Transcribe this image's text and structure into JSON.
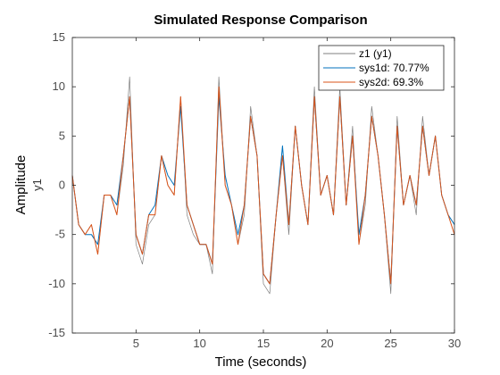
{
  "chart_data": {
    "type": "line",
    "title": "Simulated Response Comparison",
    "xlabel": "Time (seconds)",
    "ylabel": "Amplitude",
    "ylabel_sub": "y1",
    "xlim": [
      0,
      30
    ],
    "ylim": [
      -15,
      15
    ],
    "xticks": [
      5,
      10,
      15,
      20,
      25,
      30
    ],
    "yticks": [
      15,
      10,
      5,
      0,
      -5,
      -10,
      -15
    ],
    "grid": false,
    "legend_position": "top-right",
    "x": [
      0,
      0.5,
      1,
      1.5,
      2,
      2.5,
      3,
      3.5,
      4,
      4.5,
      5,
      5.5,
      6,
      6.5,
      7,
      7.5,
      8,
      8.5,
      9,
      9.5,
      10,
      10.5,
      11,
      11.5,
      12,
      12.5,
      13,
      13.5,
      14,
      14.5,
      15,
      15.5,
      16,
      16.5,
      17,
      17.5,
      18,
      18.5,
      19,
      19.5,
      20,
      20.5,
      21,
      21.5,
      22,
      22.5,
      23,
      23.5,
      24,
      24.5,
      25,
      25.5,
      26,
      26.5,
      27,
      27.5,
      28,
      28.5,
      29,
      29.5,
      30
    ],
    "series": [
      {
        "name": "z1 (y1)",
        "color": "#7f7f7f",
        "values": [
          1,
          -4,
          -5,
          -4,
          -7,
          -1,
          -1,
          -3,
          2,
          11,
          -6,
          -8,
          -4,
          -3,
          3,
          0,
          -1,
          9,
          -3,
          -5,
          -6,
          -6,
          -9,
          11,
          0,
          -2,
          -6,
          -3,
          8,
          3,
          -10,
          -11,
          -3,
          3,
          -5,
          6,
          0,
          -4,
          10,
          -1,
          1,
          -3,
          10,
          -2,
          6,
          -6,
          -2,
          8,
          3,
          -3,
          -11,
          7,
          -2,
          1,
          -3,
          7,
          1,
          5,
          -1,
          -3,
          -4
        ]
      },
      {
        "name": "sys1d: 70.77%",
        "color": "#0072bd",
        "values": [
          1,
          -4,
          -5,
          -5,
          -6,
          -1,
          -1,
          -2,
          3,
          9,
          -5,
          -7,
          -3,
          -2,
          3,
          1,
          0,
          8,
          -2,
          -4,
          -6,
          -6,
          -8,
          9,
          1,
          -2,
          -5,
          -2,
          7,
          3,
          -9,
          -10,
          -3,
          4,
          -4,
          6,
          0,
          -4,
          9,
          -1,
          1,
          -3,
          9,
          -2,
          5,
          -5,
          -1,
          7,
          3,
          -3,
          -10,
          6,
          -2,
          1,
          -2,
          6,
          1,
          5,
          -1,
          -3,
          -4
        ]
      },
      {
        "name": "sys2d: 69.3%",
        "color": "#d95319",
        "values": [
          1,
          -4,
          -5,
          -4,
          -7,
          -1,
          -1,
          -3,
          3,
          9,
          -5,
          -7,
          -3,
          -3,
          3,
          0,
          -1,
          9,
          -2,
          -4,
          -6,
          -6,
          -8,
          10,
          0,
          -2,
          -6,
          -2,
          7,
          3,
          -9,
          -10,
          -3,
          3,
          -4,
          6,
          0,
          -4,
          9,
          -1,
          1,
          -3,
          9,
          -2,
          5,
          -6,
          -1,
          7,
          3,
          -3,
          -10,
          6,
          -2,
          1,
          -2,
          6,
          1,
          5,
          -1,
          -3,
          -5
        ]
      }
    ]
  }
}
